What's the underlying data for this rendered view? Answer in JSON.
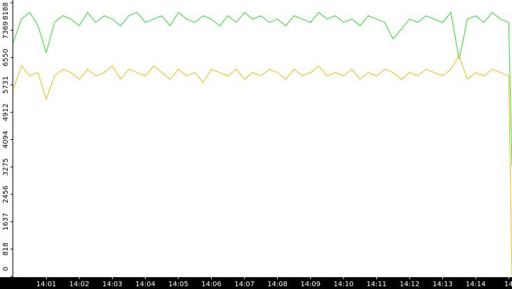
{
  "chart_data": {
    "type": "line",
    "x": [
      0,
      0.25,
      0.5,
      0.75,
      1,
      1.25,
      1.5,
      1.75,
      2,
      2.25,
      2.5,
      2.75,
      3,
      3.25,
      3.5,
      3.75,
      4,
      4.25,
      4.5,
      4.75,
      5,
      5.25,
      5.5,
      5.75,
      6,
      6.25,
      6.5,
      6.75,
      7,
      7.25,
      7.5,
      7.75,
      8,
      8.25,
      8.5,
      8.75,
      9,
      9.25,
      9.5,
      9.75,
      10,
      10.25,
      10.5,
      10.75,
      11,
      11.25,
      11.5,
      11.75,
      12,
      12.25,
      12.5,
      12.75,
      13,
      13.25,
      13.5,
      13.75,
      14,
      14.25,
      14.5,
      14.75,
      15,
      15.1
    ],
    "series": [
      {
        "color": "#22dd22",
        "values": [
          7000,
          7700,
          7900,
          7500,
          6700,
          7600,
          7800,
          7700,
          7500,
          7900,
          7600,
          7800,
          7700,
          7500,
          7800,
          7900,
          7600,
          7700,
          7800,
          7500,
          7900,
          7700,
          7600,
          7800,
          7700,
          7500,
          7800,
          7600,
          7900,
          7700,
          7800,
          7600,
          7700,
          7500,
          7800,
          7700,
          7600,
          7900,
          7700,
          7800,
          7600,
          7700,
          7500,
          7800,
          7700,
          7600,
          7100,
          7400,
          7700,
          7600,
          7800,
          7700,
          7600,
          7900,
          6500,
          7700,
          7800,
          7600,
          7900,
          7700,
          7600,
          3300
        ]
      },
      {
        "color": "#f0b800",
        "values": [
          5600,
          6300,
          6000,
          6100,
          5300,
          6000,
          6200,
          6100,
          5900,
          6200,
          6000,
          6100,
          6300,
          5900,
          6200,
          6100,
          6000,
          6300,
          6100,
          5900,
          6200,
          6000,
          6100,
          5800,
          6200,
          6100,
          6000,
          6200,
          5900,
          6100,
          6000,
          6200,
          6100,
          5900,
          6200,
          6000,
          6100,
          6300,
          6000,
          6100,
          6000,
          6200,
          5900,
          6100,
          6000,
          6200,
          6100,
          5900,
          6100,
          6000,
          6200,
          6100,
          6000,
          6200,
          6600,
          5900,
          6100,
          6000,
          6200,
          6100,
          6000,
          0
        ]
      }
    ],
    "xlim": [
      0,
      15.1
    ],
    "xticks": [
      {
        "value": 1,
        "label": "14:01"
      },
      {
        "value": 2,
        "label": "14:02"
      },
      {
        "value": 3,
        "label": "14:03"
      },
      {
        "value": 4,
        "label": "14:04"
      },
      {
        "value": 5,
        "label": "14:05"
      },
      {
        "value": 6,
        "label": "14:06"
      },
      {
        "value": 7,
        "label": "14:07"
      },
      {
        "value": 8,
        "label": "14:08"
      },
      {
        "value": 9,
        "label": "14:09"
      },
      {
        "value": 10,
        "label": "14:10"
      },
      {
        "value": 11,
        "label": "14:11"
      },
      {
        "value": 12,
        "label": "14:12"
      },
      {
        "value": 13,
        "label": "14:13"
      },
      {
        "value": 14,
        "label": "14:14"
      },
      {
        "value": 15,
        "label": "14"
      }
    ],
    "ylim": [
      0,
      8188
    ],
    "yticks": [
      0,
      818,
      1637,
      2456,
      3275,
      4094,
      4912,
      5731,
      6550,
      7369,
      8188
    ]
  }
}
